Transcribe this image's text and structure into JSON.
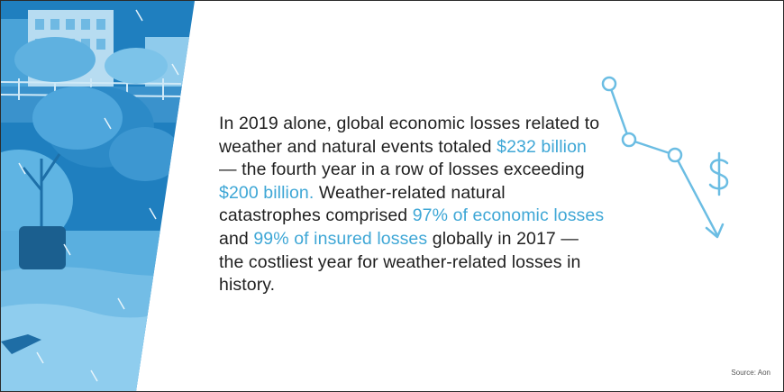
{
  "body_text": {
    "p1": "In 2019 alone, global economic losses related to weather and natural events totaled ",
    "hl1": "$232 billion",
    "p2": " — the fourth year in a row of losses exceeding ",
    "hl2": "$200 billion.",
    "p3": " Weather-related natural catastrophes comprised ",
    "hl3": "97% of economic losses",
    "p4": " and ",
    "hl4": "99% of insured losses",
    "p5": " globally in 2017 — the costliest year for weather-related losses in history."
  },
  "source": "Source: Aon",
  "icons": {
    "illustration": "flooded-city-storm-illustration",
    "chart": "declining-line-dollar-icon"
  },
  "colors": {
    "highlight": "#3fa7d6",
    "text": "#1f1f1f",
    "icon_stroke": "#6bbde3"
  }
}
